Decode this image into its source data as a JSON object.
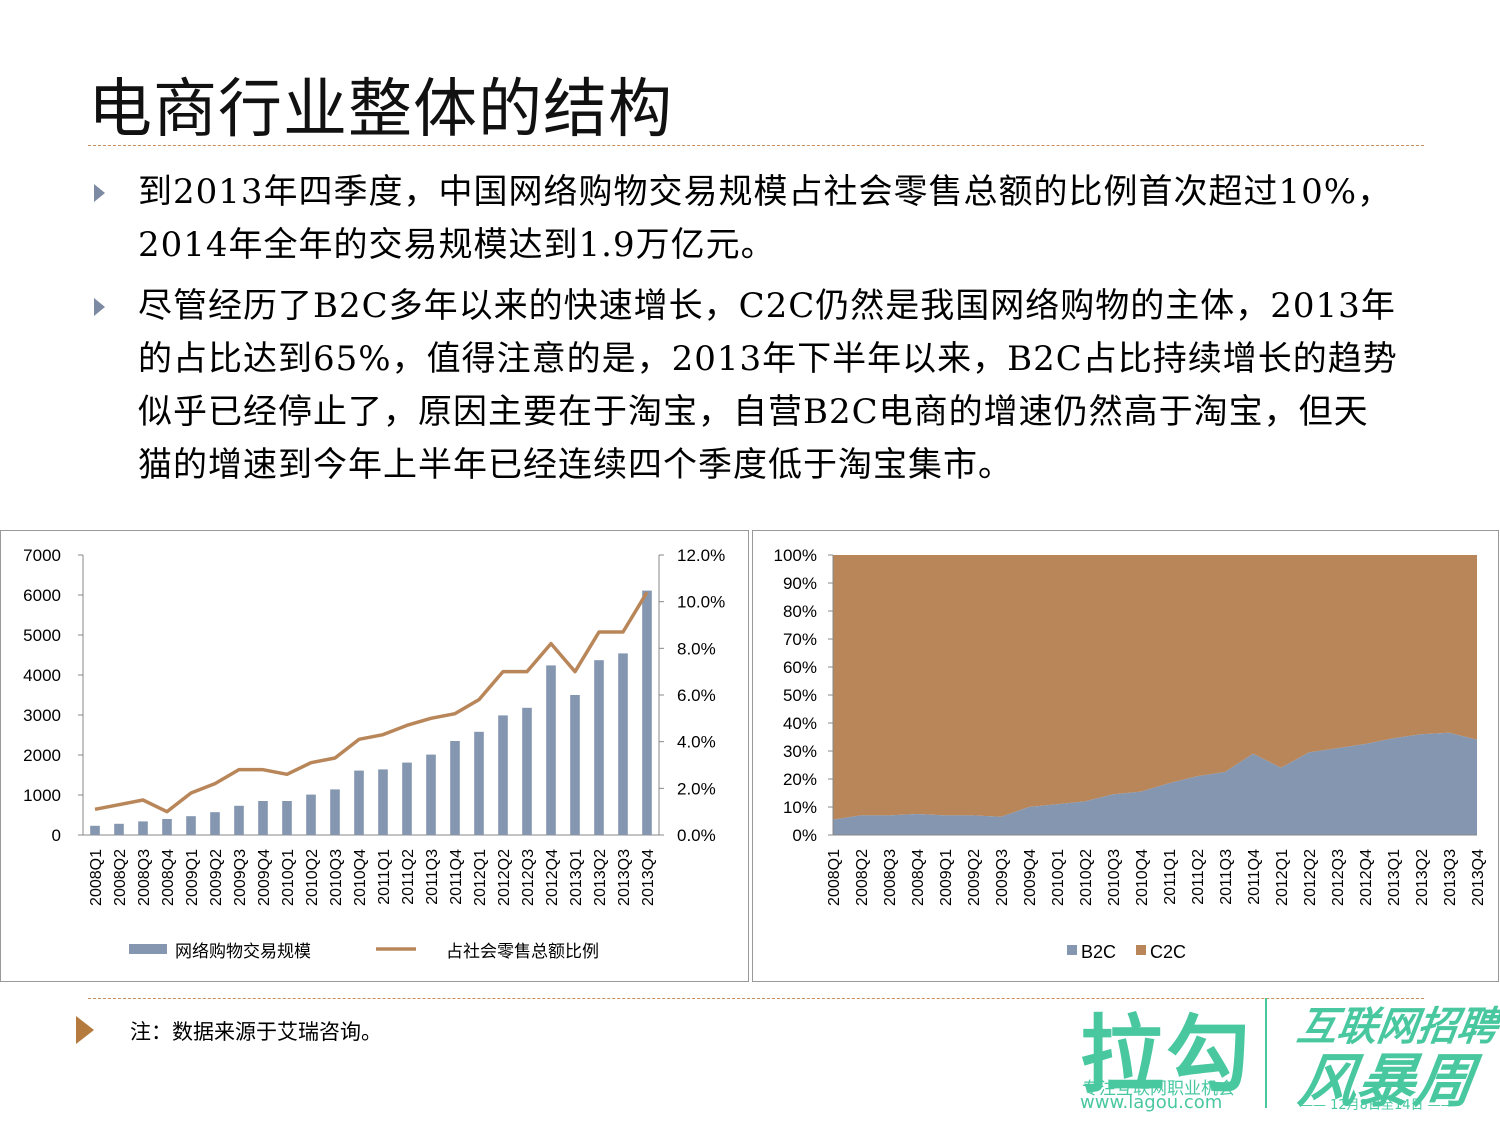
{
  "title": "电商行业整体的结构",
  "bullets": [
    "到2013年四季度，中国网络购物交易规模占社会零售总额的比例首次超过10%，2014年全年的交易规模达到1.9万亿元。",
    "尽管经历了B2C多年以来的快速增长，C2C仍然是我国网络购物的主体，2013年的占比达到65%，值得注意的是，2013年下半年以来，B2C占比持续增长的趋势似乎已经停止了，原因主要在于淘宝，自营B2C电商的增速仍然高于淘宝，但天猫的增速到今年上半年已经连续四个季度低于淘宝集市。"
  ],
  "note": "注：数据来源于艾瑞咨询。",
  "logo": {
    "main": "拉勾",
    "tagline": "专注互联网职业机会",
    "url": "www.lagou.com",
    "event_line1": "互联网招聘",
    "event_line2": "风暴周",
    "event_date": "—— 12月8日至14日 ——"
  },
  "colors": {
    "bar": "#8496b0",
    "line": "#b9865a",
    "b2c": "#8496b0",
    "c2c": "#b9865a",
    "accent": "#c98e5c",
    "brand": "#49c8a0"
  },
  "chart_data": [
    {
      "type": "bar",
      "title": "",
      "categories": [
        "2008Q1",
        "2008Q2",
        "2008Q3",
        "2008Q4",
        "2009Q1",
        "2009Q2",
        "2009Q3",
        "2009Q4",
        "2010Q1",
        "2010Q2",
        "2010Q3",
        "2010Q4",
        "2011Q1",
        "2011Q2",
        "2011Q3",
        "2011Q4",
        "2012Q1",
        "2012Q2",
        "2012Q3",
        "2012Q4",
        "2013Q1",
        "2013Q2",
        "2013Q3",
        "2013Q4"
      ],
      "series": [
        {
          "name": "网络购物交易规模",
          "kind": "bar",
          "axis": "left",
          "values": [
            230,
            280,
            340,
            400,
            470,
            570,
            730,
            850,
            850,
            1010,
            1140,
            1610,
            1640,
            1810,
            2010,
            2350,
            2580,
            2990,
            3180,
            4240,
            3500,
            4370,
            4540,
            6110
          ]
        },
        {
          "name": "占社会零售总额比例",
          "kind": "line",
          "axis": "right",
          "values": [
            1.1,
            1.3,
            1.5,
            1.0,
            1.8,
            2.2,
            2.8,
            2.8,
            2.6,
            3.1,
            3.3,
            4.1,
            4.3,
            4.7,
            5.0,
            5.2,
            5.8,
            7.0,
            7.0,
            8.2,
            7.0,
            8.7,
            8.7,
            10.4
          ]
        }
      ],
      "ylim_left": [
        0,
        7000
      ],
      "yticks_left": [
        "0",
        "1000",
        "2000",
        "3000",
        "4000",
        "5000",
        "6000",
        "7000"
      ],
      "ylim_right": [
        0,
        12
      ],
      "yticks_right": [
        "0.0%",
        "2.0%",
        "4.0%",
        "6.0%",
        "8.0%",
        "10.0%",
        "12.0%"
      ],
      "legend_position": "bottom"
    },
    {
      "type": "area",
      "stacked_percent": true,
      "categories": [
        "2008Q1",
        "2008Q2",
        "2008Q3",
        "2008Q4",
        "2009Q1",
        "2009Q2",
        "2009Q3",
        "2009Q4",
        "2010Q1",
        "2010Q2",
        "2010Q3",
        "2010Q4",
        "2011Q1",
        "2011Q2",
        "2011Q3",
        "2011Q4",
        "2012Q1",
        "2012Q2",
        "2012Q3",
        "2012Q4",
        "2013Q1",
        "2013Q2",
        "2013Q3",
        "2013Q4"
      ],
      "series": [
        {
          "name": "B2C",
          "values": [
            5.5,
            7.0,
            7.0,
            7.5,
            7.0,
            7.0,
            6.5,
            10.0,
            11.0,
            12.0,
            14.5,
            15.5,
            18.5,
            21.0,
            22.5,
            29.0,
            24.0,
            29.5,
            31.0,
            32.5,
            34.5,
            36.0,
            36.5,
            34.0
          ]
        },
        {
          "name": "C2C",
          "values": [
            94.5,
            93.0,
            93.0,
            92.5,
            93.0,
            93.0,
            93.5,
            90.0,
            89.0,
            88.0,
            85.5,
            84.5,
            81.5,
            79.0,
            77.5,
            71.0,
            76.0,
            70.5,
            69.0,
            67.5,
            65.5,
            64.0,
            63.5,
            66.0
          ]
        }
      ],
      "ylim": [
        0,
        100
      ],
      "yticks": [
        "0%",
        "10%",
        "20%",
        "30%",
        "40%",
        "50%",
        "60%",
        "70%",
        "80%",
        "90%",
        "100%"
      ],
      "legend_position": "bottom"
    }
  ]
}
